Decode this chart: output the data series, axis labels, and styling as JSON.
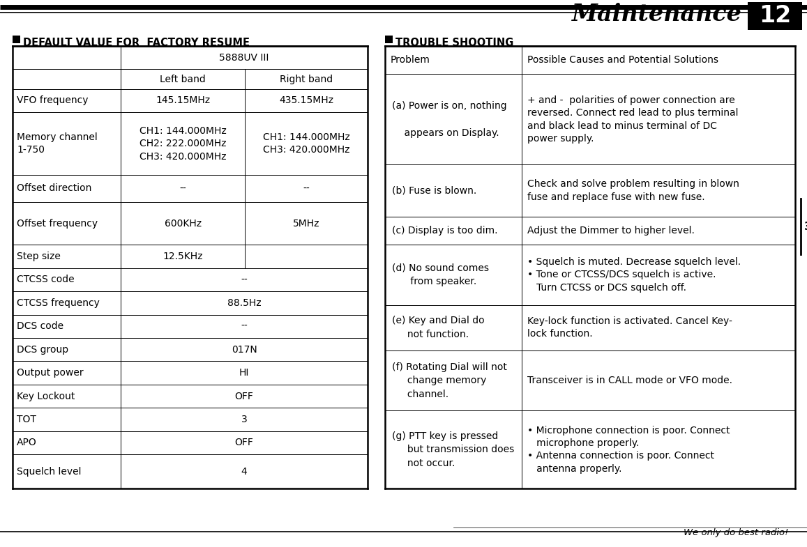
{
  "bg_color": "#ffffff",
  "page_title": "Maintenance",
  "page_number": "12",
  "left_section_title": "DEFAULT VALUE FOR  FACTORY RESUME",
  "right_section_title": "TROUBLE SHOOTING",
  "left_table_rows": [
    [
      "",
      "5888UV III",
      ""
    ],
    [
      "",
      "Left band",
      "Right band"
    ],
    [
      "VFO frequency",
      "145.15MHz",
      "435.15MHz"
    ],
    [
      "Memory channel\n1-750",
      "CH1: 144.000MHz\nCH2: 222.000MHz\nCH3: 420.000MHz",
      "CH1: 144.000MHz\nCH3: 420.000MHz"
    ],
    [
      "Offset direction",
      "--",
      "--"
    ],
    [
      "Offset frequency",
      "600KHz",
      "5MHz"
    ],
    [
      "Step size",
      "12.5KHz",
      ""
    ],
    [
      "CTCSS code",
      "--",
      ""
    ],
    [
      "CTCSS frequency",
      "88.5Hz",
      ""
    ],
    [
      "DCS code",
      "--",
      ""
    ],
    [
      "DCS group",
      "017N",
      ""
    ],
    [
      "Output power",
      "HI",
      ""
    ],
    [
      "Key Lockout",
      "OFF",
      ""
    ],
    [
      "TOT",
      "3",
      ""
    ],
    [
      "APO",
      "OFF",
      ""
    ],
    [
      "Squelch level",
      "4",
      ""
    ]
  ],
  "right_table_rows": [
    [
      "Problem",
      "Possible Causes and Potential Solutions"
    ],
    [
      "(a) Power is on, nothing\n\n    appears on Display.",
      "+ and -  polarities of power connection are\nreversed. Connect red lead to plus terminal\nand black lead to minus terminal of DC\npower supply."
    ],
    [
      "(b) Fuse is blown.",
      "Check and solve problem resulting in blown\nfuse and replace fuse with new fuse."
    ],
    [
      "(c) Display is too dim.",
      "Adjust the Dimmer to higher level."
    ],
    [
      "(d) No sound comes\n      from speaker.",
      "• Squelch is muted. Decrease squelch level.\n• Tone or CTCSS/DCS squelch is active.\n   Turn CTCSS or DCS squelch off."
    ],
    [
      "(e) Key and Dial do\n     not function.",
      "Key-lock function is activated. Cancel Key-\nlock function."
    ],
    [
      "(f) Rotating Dial will not\n     change memory\n     channel.",
      "Transceiver is in CALL mode or VFO mode."
    ],
    [
      "(g) PTT key is pressed\n     but transmission does\n     not occur.",
      "• Microphone connection is poor. Connect\n   microphone properly.\n• Antenna connection is poor. Connect\n   antenna properly."
    ]
  ],
  "footer_text": "We only do best radio!"
}
